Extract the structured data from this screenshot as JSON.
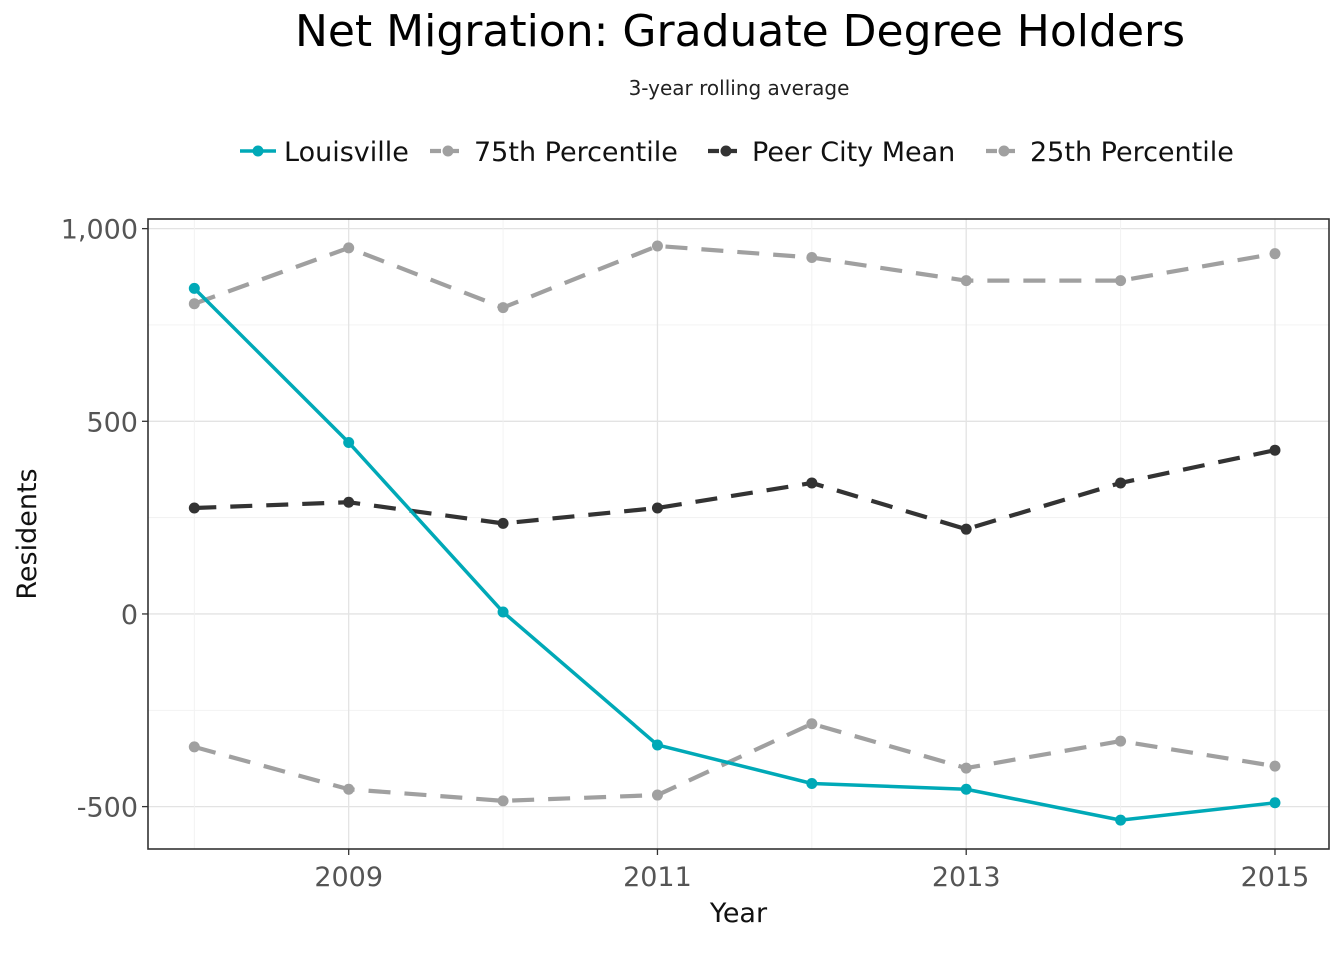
{
  "chart_data": {
    "type": "line",
    "title": "Net Migration: Graduate Degree Holders",
    "subtitle": "3-year rolling average",
    "xlabel": "Year",
    "ylabel": "Residents",
    "x": [
      2008,
      2009,
      2010,
      2011,
      2012,
      2013,
      2014,
      2015
    ],
    "x_ticks": [
      2009,
      2011,
      2013,
      2015
    ],
    "y_ticks": [
      -500,
      0,
      500,
      1000
    ],
    "y_tick_labels": [
      "-500",
      "0",
      "500",
      "1,000"
    ],
    "ylim": [
      -610,
      1025
    ],
    "xlim": [
      2007.7,
      2015.35
    ],
    "grid": true,
    "legend_position": "top",
    "series": [
      {
        "name": "Louisville",
        "color": "#00a9b7",
        "dash": "solid",
        "values": [
          845,
          445,
          5,
          -340,
          -440,
          -455,
          -535,
          -490
        ]
      },
      {
        "name": "75th Percentile",
        "color": "#a0a0a0",
        "dash": "dashed",
        "values": [
          805,
          950,
          795,
          955,
          925,
          865,
          865,
          935
        ]
      },
      {
        "name": "Peer City Mean",
        "color": "#333333",
        "dash": "dashed",
        "values": [
          275,
          290,
          235,
          275,
          340,
          220,
          340,
          425
        ]
      },
      {
        "name": "25th Percentile",
        "color": "#a0a0a0",
        "dash": "dashed",
        "values": [
          -345,
          -455,
          -485,
          -470,
          -285,
          -400,
          -330,
          -395
        ]
      }
    ]
  }
}
